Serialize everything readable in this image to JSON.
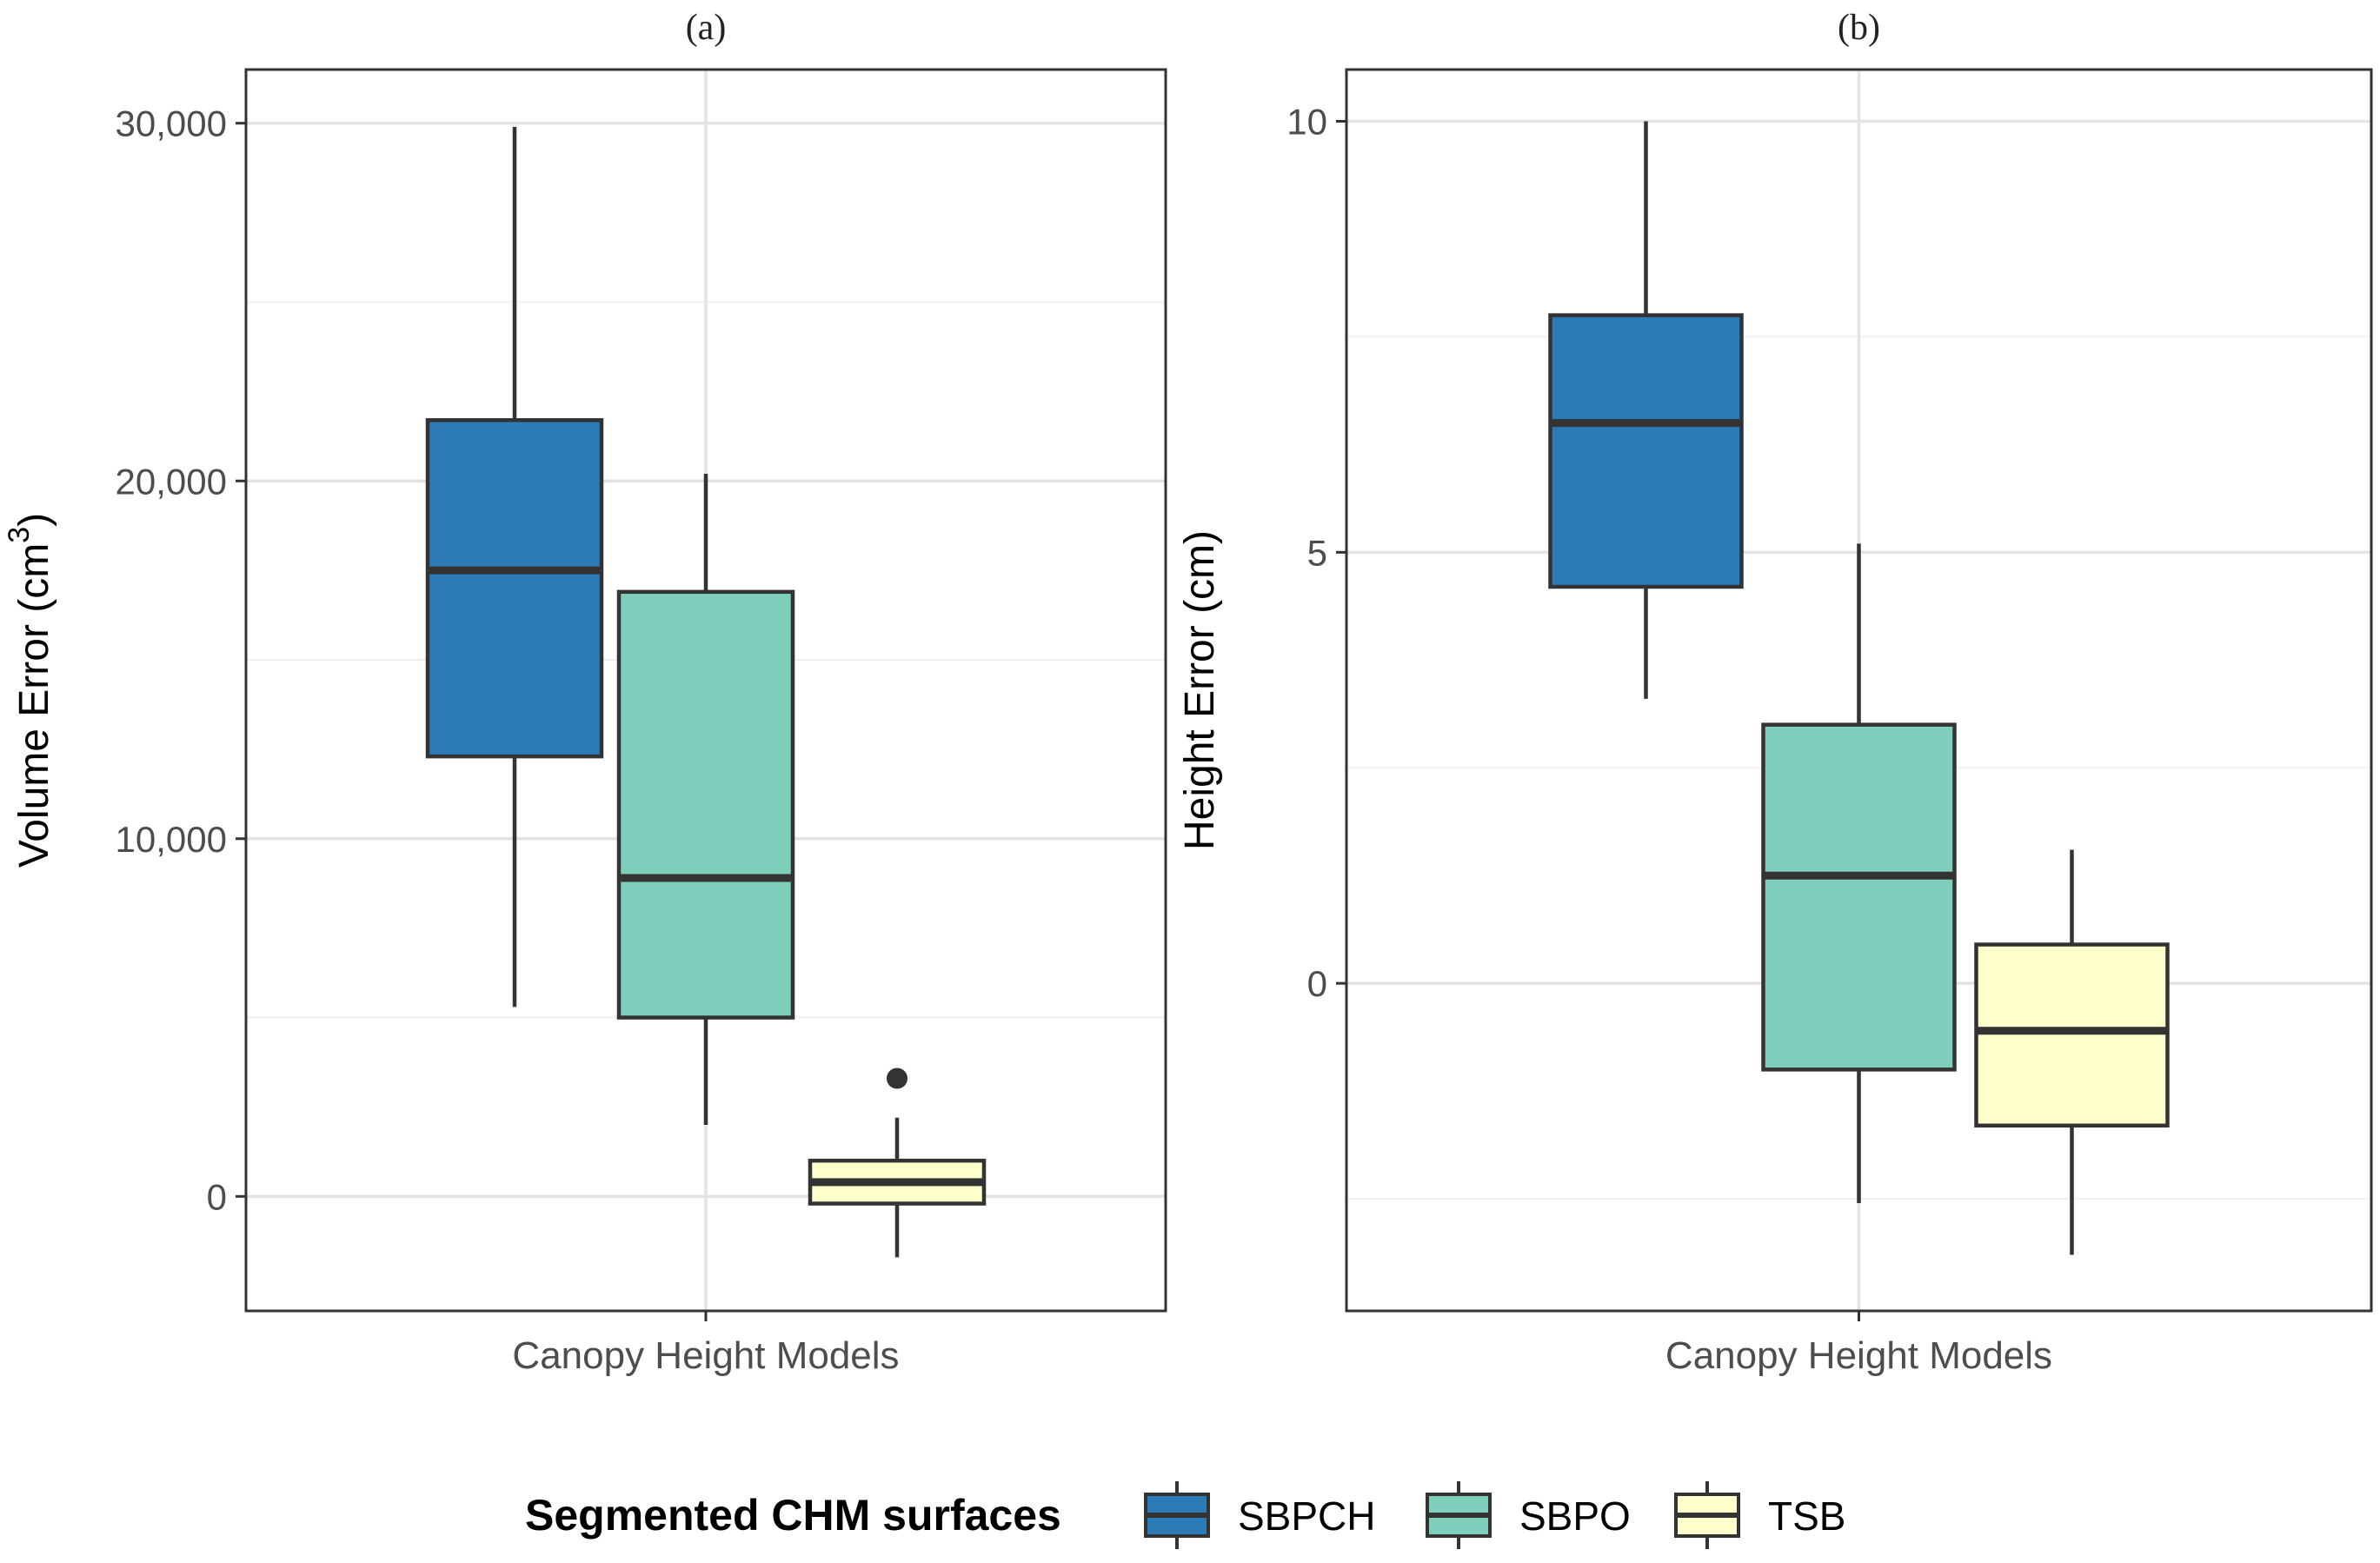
{
  "chart_data": [
    {
      "type": "box",
      "panel_label": "(a)",
      "xlabel": "Canopy Height Models",
      "ylabel": "Volume Error (cm",
      "ylabel_sup": "3",
      "ylabel_close": ")",
      "ylim": [
        -3200,
        31500
      ],
      "yticks": [
        0,
        10000,
        20000,
        30000
      ],
      "ytick_labels": [
        "0",
        "10,000",
        "20,000",
        "30,000"
      ],
      "grid": true,
      "series": [
        {
          "name": "SBPCH",
          "whisker_low": 5300,
          "q1": 12300,
          "median": 17500,
          "q3": 21700,
          "whisker_high": 29900,
          "outliers": []
        },
        {
          "name": "SBPO",
          "whisker_low": 2000,
          "q1": 5000,
          "median": 8900,
          "q3": 16900,
          "whisker_high": 20200,
          "outliers": []
        },
        {
          "name": "TSB",
          "whisker_low": -1700,
          "q1": -200,
          "median": 400,
          "q3": 1000,
          "whisker_high": 2200,
          "outliers": [
            3300
          ]
        }
      ]
    },
    {
      "type": "box",
      "panel_label": "(b)",
      "xlabel": "Canopy Height Models",
      "ylabel": "Height Error (cm)",
      "ylim": [
        -3.8,
        10.6
      ],
      "yticks": [
        0,
        5,
        10
      ],
      "ytick_labels": [
        "0",
        "5",
        "10"
      ],
      "grid": true,
      "series": [
        {
          "name": "SBPCH",
          "whisker_low": 3.3,
          "q1": 4.6,
          "median": 6.5,
          "q3": 7.75,
          "whisker_high": 10.0,
          "outliers": []
        },
        {
          "name": "SBPO",
          "whisker_low": -2.55,
          "q1": -1.0,
          "median": 1.25,
          "q3": 3.0,
          "whisker_high": 5.1,
          "outliers": []
        },
        {
          "name": "TSB",
          "whisker_low": -3.15,
          "q1": -1.65,
          "median": -0.55,
          "q3": 0.45,
          "whisker_high": 1.55,
          "outliers": []
        }
      ]
    }
  ],
  "legend": {
    "title": "Segmented CHM surfaces",
    "position": "bottom",
    "items": [
      {
        "name": "SBPCH",
        "color": "#2c7bb6"
      },
      {
        "name": "SBPO",
        "color": "#7fcdbb"
      },
      {
        "name": "TSB",
        "color": "#ffffcc"
      }
    ]
  }
}
